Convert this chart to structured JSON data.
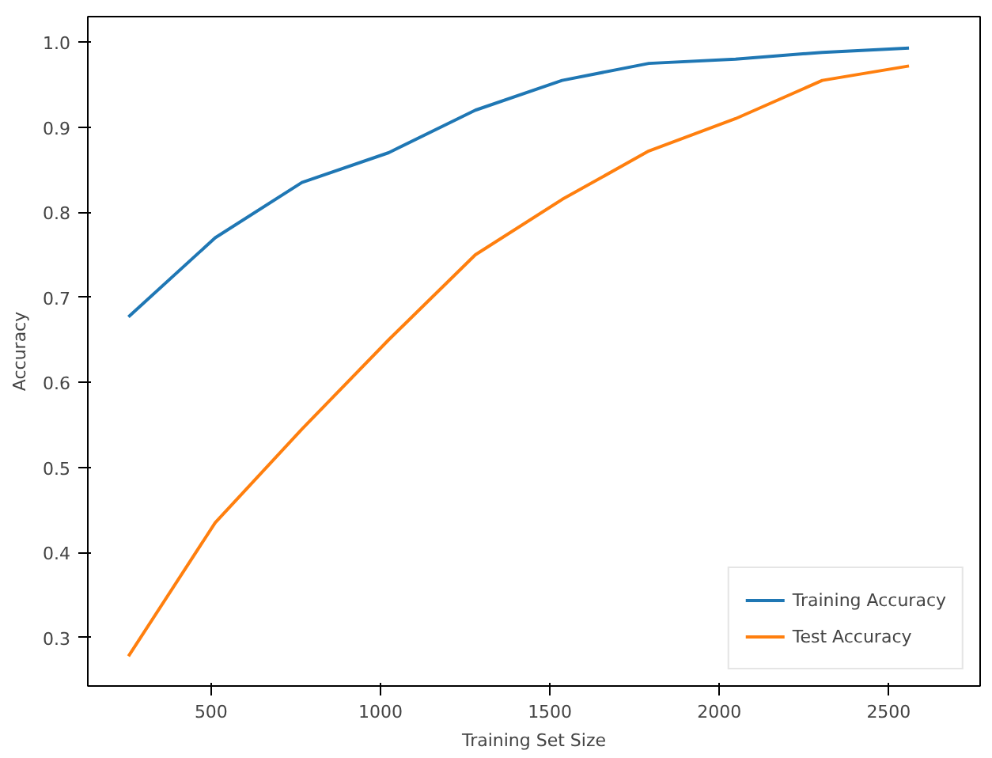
{
  "chart_data": {
    "type": "line",
    "xlabel": "Training Set Size",
    "ylabel": "Accuracy",
    "x": [
      256,
      512,
      768,
      1024,
      1280,
      1536,
      1792,
      2048,
      2304,
      2560
    ],
    "series": [
      {
        "name": "Training Accuracy",
        "color": "#1f77b4",
        "values": [
          0.677,
          0.77,
          0.835,
          0.87,
          0.92,
          0.955,
          0.975,
          0.98,
          0.988,
          0.993
        ]
      },
      {
        "name": "Test Accuracy",
        "color": "#ff7f0e",
        "values": [
          0.278,
          0.435,
          0.545,
          0.65,
          0.75,
          0.815,
          0.872,
          0.91,
          0.955,
          0.972
        ]
      }
    ],
    "xlim": [
      136,
      2770
    ],
    "ylim": [
      0.243,
      1.03
    ],
    "xticks": [
      500,
      1000,
      1500,
      2000,
      2500
    ],
    "yticks": [
      {
        "value": 0.3,
        "label": "0.3"
      },
      {
        "value": 0.4,
        "label": "0.4"
      },
      {
        "value": 0.5,
        "label": "0.5"
      },
      {
        "value": 0.6,
        "label": "0.6"
      },
      {
        "value": 0.7,
        "label": "0.7"
      },
      {
        "value": 0.8,
        "label": "0.8"
      },
      {
        "value": 0.9,
        "label": "0.9"
      },
      {
        "value": 1.0,
        "label": "1.0"
      }
    ],
    "grid": false,
    "legend": "bottom right",
    "marker": "none",
    "line_style": "solid"
  }
}
